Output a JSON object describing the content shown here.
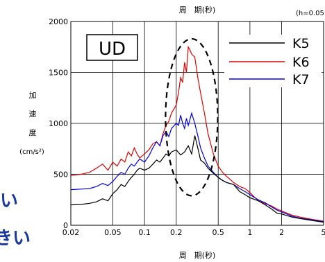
{
  "chart_data": {
    "type": "line",
    "title": "周　期(秒)",
    "damping_note": "(h=0.05",
    "xlabel": "周　期(秒)",
    "ylabel": [
      "加",
      "速",
      "度",
      "(cm/s²)"
    ],
    "x_scale": "log",
    "xlim": [
      0.02,
      5
    ],
    "ylim": [
      0,
      2000
    ],
    "x_ticks": [
      0.02,
      0.05,
      0.1,
      0.2,
      0.5,
      1,
      2,
      5
    ],
    "x_tick_labels": [
      "0.02",
      "0.05",
      "0.1",
      "0.2",
      "0.5",
      "1",
      "2",
      "5"
    ],
    "y_ticks": [
      0,
      500,
      1000,
      1500,
      2000
    ],
    "y_tick_labels": [
      "0",
      "500",
      "1000",
      "1500",
      "2000"
    ],
    "grid": true,
    "component_label": "UD",
    "legend_position": "top-right",
    "series": [
      {
        "name": "K5",
        "color": "#000000",
        "points": [
          [
            0.02,
            200
          ],
          [
            0.025,
            205
          ],
          [
            0.03,
            215
          ],
          [
            0.035,
            230
          ],
          [
            0.04,
            260
          ],
          [
            0.045,
            240
          ],
          [
            0.05,
            310
          ],
          [
            0.055,
            350
          ],
          [
            0.06,
            400
          ],
          [
            0.065,
            380
          ],
          [
            0.07,
            430
          ],
          [
            0.075,
            470
          ],
          [
            0.08,
            500
          ],
          [
            0.085,
            540
          ],
          [
            0.09,
            560
          ],
          [
            0.1,
            540
          ],
          [
            0.11,
            560
          ],
          [
            0.12,
            600
          ],
          [
            0.13,
            640
          ],
          [
            0.14,
            620
          ],
          [
            0.15,
            660
          ],
          [
            0.16,
            700
          ],
          [
            0.17,
            680
          ],
          [
            0.18,
            720
          ],
          [
            0.2,
            740
          ],
          [
            0.22,
            690
          ],
          [
            0.24,
            720
          ],
          [
            0.26,
            780
          ],
          [
            0.28,
            700
          ],
          [
            0.3,
            880
          ],
          [
            0.32,
            760
          ],
          [
            0.34,
            640
          ],
          [
            0.37,
            610
          ],
          [
            0.4,
            560
          ],
          [
            0.45,
            510
          ],
          [
            0.5,
            470
          ],
          [
            0.55,
            440
          ],
          [
            0.6,
            420
          ],
          [
            0.7,
            400
          ],
          [
            0.8,
            330
          ],
          [
            0.9,
            300
          ],
          [
            1.0,
            270
          ],
          [
            1.2,
            240
          ],
          [
            1.4,
            200
          ],
          [
            1.6,
            160
          ],
          [
            1.8,
            120
          ],
          [
            2.0,
            110
          ],
          [
            2.5,
            80
          ],
          [
            3.0,
            65
          ],
          [
            4.0,
            45
          ],
          [
            5.0,
            30
          ]
        ]
      },
      {
        "name": "K6",
        "color": "#e00000",
        "points": [
          [
            0.02,
            490
          ],
          [
            0.025,
            500
          ],
          [
            0.03,
            520
          ],
          [
            0.035,
            560
          ],
          [
            0.04,
            600
          ],
          [
            0.045,
            540
          ],
          [
            0.05,
            620
          ],
          [
            0.055,
            580
          ],
          [
            0.06,
            650
          ],
          [
            0.065,
            620
          ],
          [
            0.07,
            720
          ],
          [
            0.075,
            680
          ],
          [
            0.08,
            760
          ],
          [
            0.085,
            700
          ],
          [
            0.09,
            660
          ],
          [
            0.1,
            700
          ],
          [
            0.11,
            740
          ],
          [
            0.12,
            800
          ],
          [
            0.13,
            820
          ],
          [
            0.14,
            780
          ],
          [
            0.15,
            900
          ],
          [
            0.16,
            980
          ],
          [
            0.17,
            1020
          ],
          [
            0.18,
            1100
          ],
          [
            0.2,
            1180
          ],
          [
            0.21,
            1300
          ],
          [
            0.22,
            1450
          ],
          [
            0.23,
            1400
          ],
          [
            0.24,
            1600
          ],
          [
            0.25,
            1500
          ],
          [
            0.26,
            1750
          ],
          [
            0.27,
            1720
          ],
          [
            0.28,
            1680
          ],
          [
            0.3,
            1650
          ],
          [
            0.32,
            1450
          ],
          [
            0.34,
            1300
          ],
          [
            0.37,
            1100
          ],
          [
            0.4,
            900
          ],
          [
            0.45,
            700
          ],
          [
            0.5,
            580
          ],
          [
            0.55,
            520
          ],
          [
            0.6,
            480
          ],
          [
            0.7,
            420
          ],
          [
            0.8,
            380
          ],
          [
            0.9,
            360
          ],
          [
            1.0,
            320
          ],
          [
            1.2,
            240
          ],
          [
            1.4,
            210
          ],
          [
            1.6,
            190
          ],
          [
            1.8,
            160
          ],
          [
            2.0,
            140
          ],
          [
            2.5,
            100
          ],
          [
            3.0,
            80
          ],
          [
            4.0,
            55
          ],
          [
            5.0,
            40
          ]
        ]
      },
      {
        "name": "K7",
        "color": "#0000e0",
        "points": [
          [
            0.02,
            350
          ],
          [
            0.025,
            355
          ],
          [
            0.03,
            360
          ],
          [
            0.035,
            380
          ],
          [
            0.04,
            410
          ],
          [
            0.045,
            390
          ],
          [
            0.05,
            430
          ],
          [
            0.055,
            480
          ],
          [
            0.06,
            520
          ],
          [
            0.065,
            500
          ],
          [
            0.07,
            560
          ],
          [
            0.075,
            600
          ],
          [
            0.08,
            580
          ],
          [
            0.085,
            620
          ],
          [
            0.09,
            650
          ],
          [
            0.1,
            620
          ],
          [
            0.11,
            680
          ],
          [
            0.12,
            760
          ],
          [
            0.13,
            820
          ],
          [
            0.14,
            780
          ],
          [
            0.15,
            880
          ],
          [
            0.16,
            920
          ],
          [
            0.17,
            870
          ],
          [
            0.18,
            950
          ],
          [
            0.2,
            1000
          ],
          [
            0.21,
            980
          ],
          [
            0.22,
            1080
          ],
          [
            0.23,
            1000
          ],
          [
            0.24,
            950
          ],
          [
            0.25,
            1050
          ],
          [
            0.26,
            980
          ],
          [
            0.28,
            1100
          ],
          [
            0.3,
            1000
          ],
          [
            0.32,
            880
          ],
          [
            0.34,
            760
          ],
          [
            0.37,
            660
          ],
          [
            0.4,
            580
          ],
          [
            0.45,
            520
          ],
          [
            0.5,
            470
          ],
          [
            0.55,
            440
          ],
          [
            0.6,
            420
          ],
          [
            0.7,
            400
          ],
          [
            0.8,
            360
          ],
          [
            0.9,
            330
          ],
          [
            1.0,
            300
          ],
          [
            1.2,
            250
          ],
          [
            1.4,
            220
          ],
          [
            1.6,
            180
          ],
          [
            1.8,
            150
          ],
          [
            2.0,
            130
          ],
          [
            2.5,
            90
          ],
          [
            3.0,
            70
          ],
          [
            4.0,
            50
          ],
          [
            5.0,
            35
          ]
        ]
      }
    ],
    "annotation": {
      "shape": "dashed-ellipse",
      "x_center": 0.28,
      "y_center": 1060,
      "x_range": [
        0.16,
        0.5
      ],
      "y_range": [
        290,
        1830
      ]
    }
  },
  "overlay_text": {
    "line1": "い",
    "line2": "きい"
  }
}
